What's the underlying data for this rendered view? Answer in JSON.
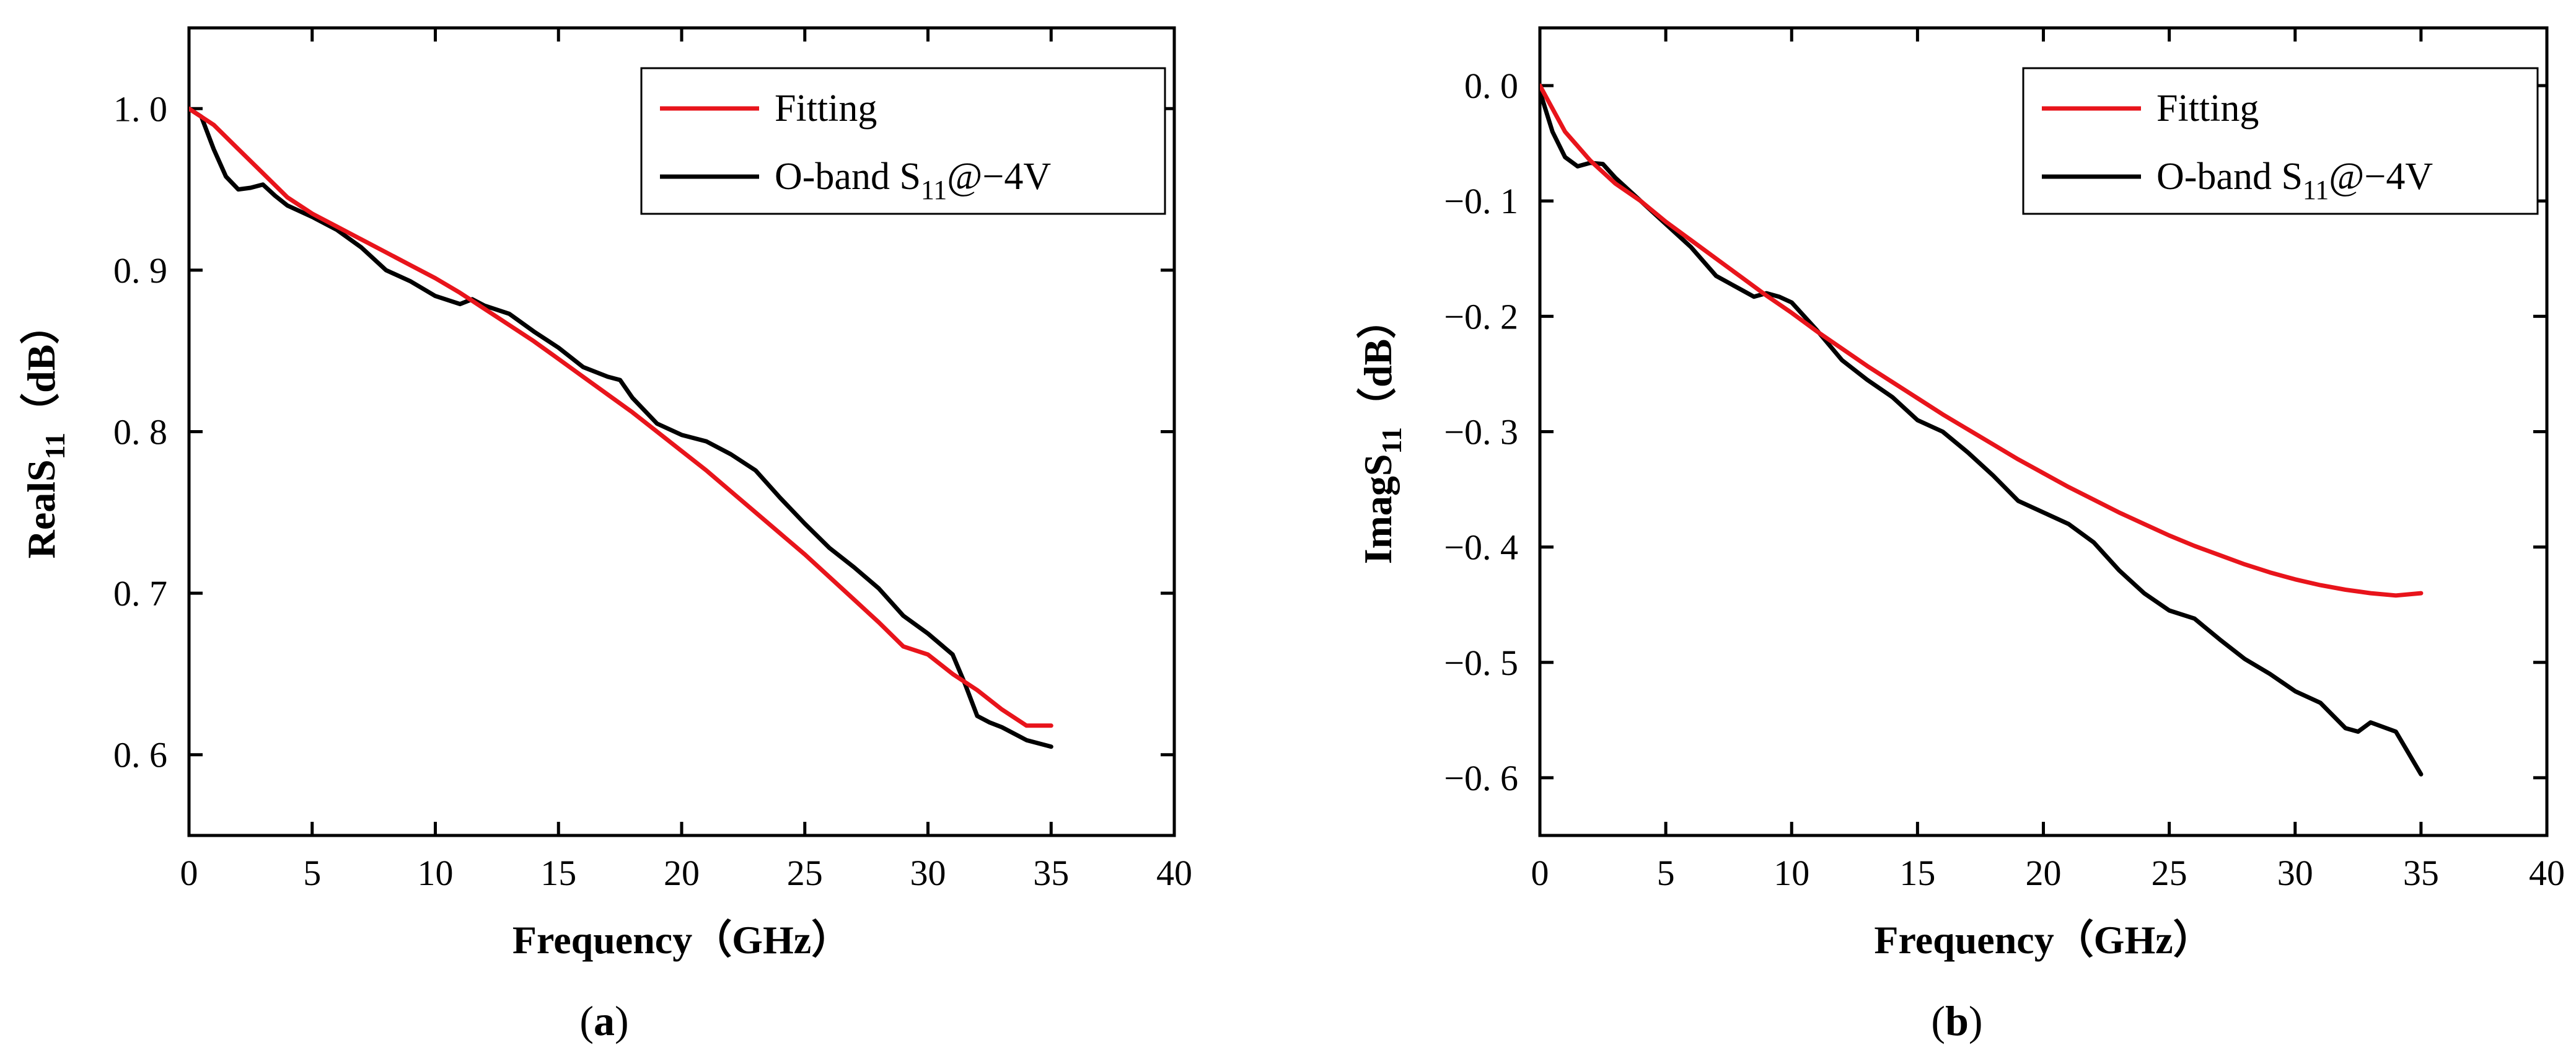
{
  "chart_data": [
    {
      "type": "line",
      "caption": "(a)",
      "xlabel": "Frequency（GHz）",
      "ylabel_main": "RealS",
      "ylabel_sub": "11",
      "ylabel_suffix": "（dB）",
      "xlim": [
        0,
        40
      ],
      "ylim": [
        0.55,
        1.05
      ],
      "xticks": [
        0,
        5,
        10,
        15,
        20,
        25,
        30,
        35,
        40
      ],
      "yticks": [
        0.6,
        0.7,
        0.8,
        0.9,
        1.0
      ],
      "ytick_labels": [
        "0. 6",
        "0. 7",
        "0. 8",
        "0. 9",
        "1. 0"
      ],
      "legend_position": "top-right",
      "series": [
        {
          "name": "Fitting",
          "color": "#e8141b",
          "x": [
            0,
            1,
            2,
            3,
            4,
            5,
            6,
            7,
            8,
            9,
            10,
            11,
            12,
            13,
            14,
            15,
            16,
            17,
            18,
            19,
            20,
            21,
            22,
            23,
            24,
            25,
            26,
            27,
            28,
            29,
            30,
            31,
            32,
            33,
            34,
            35
          ],
          "y": [
            1.0,
            0.99,
            0.975,
            0.96,
            0.945,
            0.935,
            0.927,
            0.919,
            0.911,
            0.903,
            0.895,
            0.886,
            0.876,
            0.866,
            0.856,
            0.845,
            0.834,
            0.823,
            0.812,
            0.8,
            0.788,
            0.776,
            0.763,
            0.75,
            0.737,
            0.724,
            0.71,
            0.696,
            0.682,
            0.667,
            0.662,
            0.65,
            0.64,
            0.628,
            0.618,
            0.618
          ]
        },
        {
          "name": "O-band S11@−4V",
          "name_main": "O-band S",
          "name_sub": "11",
          "name_suffix": "@−4V",
          "color": "#000000",
          "x": [
            0,
            0.5,
            1,
            1.5,
            2,
            2.5,
            3,
            3.5,
            4,
            5,
            6,
            7,
            8,
            9,
            10,
            11,
            11.5,
            12,
            13,
            14,
            15,
            16,
            17,
            17.5,
            18,
            19,
            20,
            21,
            22,
            23,
            24,
            25,
            26,
            27,
            28,
            29,
            30,
            31,
            31.5,
            32,
            32.5,
            33,
            34,
            35
          ],
          "y": [
            1.0,
            0.995,
            0.975,
            0.958,
            0.95,
            0.951,
            0.953,
            0.946,
            0.94,
            0.933,
            0.925,
            0.914,
            0.9,
            0.893,
            0.884,
            0.879,
            0.882,
            0.878,
            0.873,
            0.862,
            0.852,
            0.84,
            0.834,
            0.832,
            0.821,
            0.805,
            0.798,
            0.794,
            0.786,
            0.776,
            0.759,
            0.743,
            0.728,
            0.716,
            0.703,
            0.686,
            0.675,
            0.662,
            0.644,
            0.624,
            0.62,
            0.617,
            0.609,
            0.605
          ]
        }
      ]
    },
    {
      "type": "line",
      "caption": "(b)",
      "xlabel": "Frequency（GHz）",
      "ylabel_main": "ImagS",
      "ylabel_sub": "11",
      "ylabel_suffix": "（dB）",
      "xlim": [
        0,
        40
      ],
      "ylim": [
        -0.65,
        0.05
      ],
      "xticks": [
        0,
        5,
        10,
        15,
        20,
        25,
        30,
        35,
        40
      ],
      "yticks": [
        -0.6,
        -0.5,
        -0.4,
        -0.3,
        -0.2,
        -0.1,
        0.0
      ],
      "ytick_labels": [
        "−0. 6",
        "−0. 5",
        "−0. 4",
        "−0. 3",
        "−0. 2",
        "−0. 1",
        "0. 0"
      ],
      "legend_position": "top-right",
      "series": [
        {
          "name": "Fitting",
          "color": "#e8141b",
          "x": [
            0,
            1,
            2,
            3,
            4,
            5,
            6,
            7,
            8,
            9,
            10,
            11,
            12,
            13,
            14,
            15,
            16,
            17,
            18,
            19,
            20,
            21,
            22,
            23,
            24,
            25,
            26,
            27,
            28,
            29,
            30,
            31,
            32,
            33,
            34,
            35
          ],
          "y": [
            0.0,
            -0.04,
            -0.065,
            -0.085,
            -0.1,
            -0.118,
            -0.134,
            -0.15,
            -0.166,
            -0.182,
            -0.197,
            -0.213,
            -0.228,
            -0.243,
            -0.257,
            -0.271,
            -0.285,
            -0.298,
            -0.311,
            -0.324,
            -0.336,
            -0.348,
            -0.359,
            -0.37,
            -0.38,
            -0.39,
            -0.399,
            -0.407,
            -0.415,
            -0.422,
            -0.428,
            -0.433,
            -0.437,
            -0.44,
            -0.442,
            -0.44
          ]
        },
        {
          "name": "O-band S11@−4V",
          "name_main": "O-band S",
          "name_sub": "11",
          "name_suffix": "@−4V",
          "color": "#000000",
          "x": [
            0,
            0.5,
            1,
            1.5,
            2,
            2.5,
            3,
            3.5,
            4,
            5,
            6,
            7,
            8,
            8.5,
            9,
            9.5,
            10,
            11,
            12,
            13,
            14,
            15,
            16,
            17,
            18,
            19,
            20,
            21,
            22,
            23,
            24,
            25,
            26,
            27,
            28,
            29,
            30,
            31,
            32,
            32.5,
            33,
            34,
            35
          ],
          "y": [
            -0.005,
            -0.04,
            -0.062,
            -0.07,
            -0.067,
            -0.068,
            -0.08,
            -0.09,
            -0.1,
            -0.12,
            -0.14,
            -0.165,
            -0.177,
            -0.183,
            -0.18,
            -0.183,
            -0.188,
            -0.212,
            -0.238,
            -0.255,
            -0.27,
            -0.29,
            -0.3,
            -0.318,
            -0.338,
            -0.36,
            -0.37,
            -0.38,
            -0.396,
            -0.42,
            -0.44,
            -0.455,
            -0.462,
            -0.48,
            -0.497,
            -0.51,
            -0.525,
            -0.535,
            -0.557,
            -0.56,
            -0.552,
            -0.56,
            -0.597
          ]
        }
      ]
    }
  ]
}
